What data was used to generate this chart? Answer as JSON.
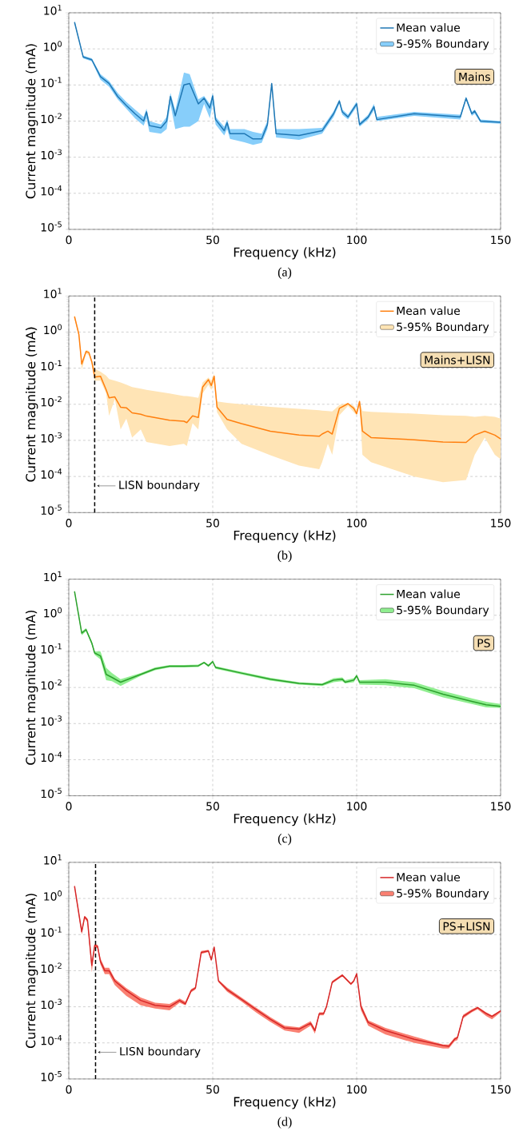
{
  "chart_data": [
    {
      "type": "line",
      "xlabel": "Frequency (kHz)",
      "ylabel": "Current magnitude (mA)",
      "annotations": [
        "Mains",
        "(a)"
      ],
      "xlim": [
        0,
        150
      ],
      "ylim": [
        1e-05,
        10
      ],
      "xticks": [
        0,
        50,
        100,
        150
      ],
      "yticks": [
        {
          "value": 1e-05,
          "label": "10$^{-5}$"
        },
        {
          "value": 0.0001,
          "label": "10$^{-4}$"
        },
        {
          "value": 0.001,
          "label": "10$^{-3}$"
        },
        {
          "value": 0.01,
          "label": "10$^{-2}$"
        },
        {
          "value": 0.1,
          "label": "10$^{-1}$"
        },
        {
          "value": 1,
          "label": "10$^{0}$"
        },
        {
          "value": 10,
          "label": "10$^{1}$"
        }
      ],
      "grid": true,
      "legend": "top right",
      "log": "y",
      "series": [
        {
          "name": "Mean value",
          "color": "#1f77b4",
          "x": [
            2,
            5,
            8,
            11,
            14,
            17,
            20,
            23,
            26,
            27,
            28,
            32,
            34,
            35.3,
            37,
            40,
            42,
            45,
            47,
            49,
            50,
            51,
            54,
            55,
            56,
            61,
            64,
            67,
            69,
            70.5,
            72,
            80,
            88,
            92,
            94,
            95,
            97,
            100,
            101,
            104,
            106,
            107,
            120,
            136,
            138,
            140,
            141,
            143,
            150
          ],
          "values": [
            5.5,
            0.6,
            0.5,
            0.17,
            0.11,
            0.048,
            0.027,
            0.016,
            0.01,
            0.018,
            0.0075,
            0.0065,
            0.01,
            0.048,
            0.014,
            0.1,
            0.11,
            0.03,
            0.043,
            0.023,
            0.05,
            0.011,
            0.0054,
            0.009,
            0.0045,
            0.0045,
            0.0032,
            0.0032,
            0.008,
            0.11,
            0.0045,
            0.004,
            0.0054,
            0.016,
            0.036,
            0.018,
            0.013,
            0.03,
            0.008,
            0.013,
            0.025,
            0.011,
            0.016,
            0.013,
            0.043,
            0.016,
            0.019,
            0.01,
            0.0093
          ],
          "lower": [
            5.0,
            0.55,
            0.45,
            0.14,
            0.09,
            0.04,
            0.022,
            0.012,
            0.0075,
            0.012,
            0.005,
            0.0045,
            0.006,
            0.03,
            0.006,
            0.007,
            0.007,
            0.01,
            0.03,
            0.012,
            0.03,
            0.008,
            0.004,
            0.006,
            0.0032,
            0.0026,
            0.0022,
            0.0025,
            0.006,
            0.09,
            0.0035,
            0.003,
            0.0045,
            0.013,
            0.03,
            0.015,
            0.011,
            0.025,
            0.007,
            0.011,
            0.02,
            0.01,
            0.014,
            0.011,
            0.038,
            0.014,
            0.016,
            0.009,
            0.0085
          ],
          "upper": [
            6.0,
            0.65,
            0.55,
            0.2,
            0.13,
            0.06,
            0.034,
            0.021,
            0.013,
            0.022,
            0.01,
            0.008,
            0.013,
            0.06,
            0.02,
            0.22,
            0.2,
            0.04,
            0.05,
            0.03,
            0.06,
            0.013,
            0.007,
            0.011,
            0.006,
            0.006,
            0.005,
            0.0045,
            0.01,
            0.12,
            0.006,
            0.006,
            0.0065,
            0.019,
            0.04,
            0.021,
            0.015,
            0.035,
            0.009,
            0.015,
            0.03,
            0.013,
            0.018,
            0.015,
            0.048,
            0.018,
            0.021,
            0.011,
            0.01
          ]
        },
        {
          "name": "5-95% Boundary",
          "type": "area",
          "color": "#87cefa"
        }
      ]
    },
    {
      "type": "line",
      "xlabel": "Frequency (kHz)",
      "ylabel": "Current magnitude (mA)",
      "annotations": [
        "Mains+LISN",
        "(b)"
      ],
      "xlim": [
        0,
        150
      ],
      "ylim": [
        1e-05,
        10
      ],
      "xticks": [
        0,
        50,
        100,
        150
      ],
      "yticks": [
        {
          "value": 1e-05,
          "label": "10$^{-5}$"
        },
        {
          "value": 0.0001,
          "label": "10$^{-4}$"
        },
        {
          "value": 0.001,
          "label": "10$^{-3}$"
        },
        {
          "value": 0.01,
          "label": "10$^{-2}$"
        },
        {
          "value": 0.1,
          "label": "10$^{-1}$"
        },
        {
          "value": 1,
          "label": "10$^{0}$"
        },
        {
          "value": 10,
          "label": "10$^{1}$"
        }
      ],
      "grid": true,
      "legend": "top right",
      "log": "y",
      "ref_lines": [
        {
          "axis": "x",
          "value": 9,
          "label": "LISN boundary",
          "color": "#000000",
          "line_style": "dashed"
        }
      ],
      "series": [
        {
          "name": "Mean value",
          "color": "#ff7f0e",
          "x": [
            2,
            3.5,
            4.5,
            6,
            7,
            8,
            9,
            11,
            13,
            14,
            16,
            18,
            20,
            22,
            25,
            27,
            35,
            40,
            41,
            43,
            45,
            46.5,
            48.5,
            49.5,
            50.5,
            51.5,
            55,
            60,
            70,
            80,
            87,
            88,
            90,
            91.5,
            94,
            97,
            99,
            100,
            101,
            102,
            105,
            120,
            130,
            138,
            141,
            144.5,
            148,
            150
          ],
          "values": [
            2.7,
            0.87,
            0.13,
            0.29,
            0.27,
            0.15,
            0.057,
            0.06,
            0.025,
            0.015,
            0.016,
            0.0083,
            0.008,
            0.0058,
            0.0053,
            0.0047,
            0.0036,
            0.0034,
            0.0031,
            0.0048,
            0.0043,
            0.03,
            0.048,
            0.033,
            0.06,
            0.0083,
            0.0038,
            0.0029,
            0.0018,
            0.0014,
            0.0013,
            0.0015,
            0.0018,
            0.0015,
            0.0077,
            0.0104,
            0.0077,
            0.0055,
            0.012,
            0.0018,
            0.0012,
            0.00104,
            0.0009,
            0.00088,
            0.0014,
            0.0018,
            0.0014,
            0.0011
          ],
          "lower": [
            2.3,
            0.75,
            0.09,
            0.25,
            0.23,
            0.13,
            0.045,
            0.045,
            0.02,
            0.0048,
            0.014,
            0.002,
            0.004,
            0.0012,
            0.002,
            0.0009,
            0.0007,
            0.0008,
            0.0007,
            0.003,
            0.002,
            0.02,
            0.035,
            0.025,
            0.04,
            0.006,
            0.002,
            0.0008,
            0.00039,
            0.0002,
            0.00016,
            0.00025,
            0.0008,
            0.0004,
            0.005,
            0.009,
            0.006,
            0.005,
            0.01,
            0.0004,
            0.00025,
            0.0001,
            7e-05,
            8e-05,
            0.0004,
            0.0012,
            0.0004,
            0.0003
          ],
          "upper": [
            3.0,
            1.0,
            0.15,
            0.32,
            0.3,
            0.17,
            0.096,
            0.08,
            0.062,
            0.05,
            0.045,
            0.04,
            0.035,
            0.03,
            0.027,
            0.025,
            0.02,
            0.017,
            0.017,
            0.016,
            0.015,
            0.04,
            0.055,
            0.045,
            0.07,
            0.012,
            0.011,
            0.01,
            0.0085,
            0.0075,
            0.0068,
            0.0067,
            0.0065,
            0.0063,
            0.0095,
            0.011,
            0.009,
            0.007,
            0.013,
            0.0065,
            0.0062,
            0.0055,
            0.005,
            0.0048,
            0.0045,
            0.0048,
            0.0045,
            0.004
          ]
        },
        {
          "name": "5-95% Boundary",
          "type": "area",
          "color": "#ffe4b5"
        }
      ]
    },
    {
      "type": "line",
      "xlabel": "Frequency (kHz)",
      "ylabel": "Current magnitude (mA)",
      "annotations": [
        "PS",
        "(c)"
      ],
      "xlim": [
        0,
        150
      ],
      "ylim": [
        1e-05,
        10
      ],
      "xticks": [
        0,
        50,
        100,
        150
      ],
      "yticks": [
        {
          "value": 1e-05,
          "label": "10$^{-5}$"
        },
        {
          "value": 0.0001,
          "label": "10$^{-4}$"
        },
        {
          "value": 0.001,
          "label": "10$^{-3}$"
        },
        {
          "value": 0.01,
          "label": "10$^{-2}$"
        },
        {
          "value": 0.1,
          "label": "10$^{-1}$"
        },
        {
          "value": 1,
          "label": "10$^{0}$"
        },
        {
          "value": 10,
          "label": "10$^{1}$"
        }
      ],
      "grid": true,
      "legend": "top right",
      "log": "y",
      "series": [
        {
          "name": "Mean value",
          "color": "#2ca02c",
          "x": [
            2,
            4.5,
            6,
            8,
            9,
            11,
            13,
            15,
            18,
            25,
            30,
            35,
            40,
            45,
            47,
            48.5,
            50,
            51,
            60,
            70,
            80,
            88,
            92,
            95,
            96,
            99,
            100,
            101,
            110,
            120,
            130,
            140,
            145,
            150
          ],
          "values": [
            4.6,
            0.32,
            0.4,
            0.17,
            0.09,
            0.075,
            0.023,
            0.019,
            0.014,
            0.023,
            0.033,
            0.039,
            0.039,
            0.04,
            0.049,
            0.04,
            0.052,
            0.036,
            0.025,
            0.017,
            0.013,
            0.012,
            0.016,
            0.017,
            0.014,
            0.016,
            0.021,
            0.014,
            0.014,
            0.0115,
            0.0065,
            0.0041,
            0.0033,
            0.003
          ],
          "lower": [
            4.2,
            0.28,
            0.36,
            0.15,
            0.08,
            0.06,
            0.016,
            0.015,
            0.011,
            0.021,
            0.03,
            0.036,
            0.036,
            0.037,
            0.046,
            0.037,
            0.048,
            0.033,
            0.023,
            0.0155,
            0.012,
            0.011,
            0.014,
            0.015,
            0.013,
            0.014,
            0.019,
            0.012,
            0.0115,
            0.0095,
            0.0053,
            0.0035,
            0.0028,
            0.0027
          ],
          "upper": [
            5.0,
            0.35,
            0.44,
            0.19,
            0.1,
            0.1,
            0.035,
            0.025,
            0.017,
            0.025,
            0.036,
            0.042,
            0.042,
            0.043,
            0.052,
            0.043,
            0.056,
            0.039,
            0.027,
            0.0185,
            0.014,
            0.013,
            0.018,
            0.019,
            0.016,
            0.018,
            0.023,
            0.016,
            0.017,
            0.014,
            0.008,
            0.005,
            0.004,
            0.0035
          ]
        },
        {
          "name": "5-95% Boundary",
          "type": "area",
          "color": "#90ee90"
        }
      ]
    },
    {
      "type": "line",
      "xlabel": "Frequency (kHz)",
      "ylabel": "Current magnitude (mA)",
      "annotations": [
        "PS+LISN",
        "(d)"
      ],
      "xlim": [
        0,
        150
      ],
      "ylim": [
        1e-05,
        10
      ],
      "xticks": [
        0,
        50,
        100,
        150
      ],
      "yticks": [
        {
          "value": 1e-05,
          "label": "10$^{-5}$"
        },
        {
          "value": 0.0001,
          "label": "10$^{-4}$"
        },
        {
          "value": 0.001,
          "label": "10$^{-3}$"
        },
        {
          "value": 0.01,
          "label": "10$^{-2}$"
        },
        {
          "value": 0.1,
          "label": "10$^{-1}$"
        },
        {
          "value": 1,
          "label": "10$^{0}$"
        },
        {
          "value": 10,
          "label": "10$^{1}$"
        }
      ],
      "grid": true,
      "legend": "top right",
      "log": "y",
      "ref_lines": [
        {
          "axis": "x",
          "value": 9.3,
          "label": "LISN boundary",
          "color": "#000000",
          "line_style": "dashed"
        }
      ],
      "series": [
        {
          "name": "Mean value",
          "color": "#d62728",
          "x": [
            2,
            4,
            4.5,
            5.5,
            6.5,
            8,
            9,
            10,
            11,
            12.5,
            14,
            16,
            20,
            25,
            30,
            35,
            38.5,
            40.5,
            42.5,
            44,
            46,
            48.5,
            49.5,
            50.5,
            52,
            55,
            60,
            65,
            70,
            75,
            80,
            84,
            85.5,
            87,
            88.5,
            89.5,
            91.5,
            95,
            98,
            99,
            100,
            101.5,
            104,
            110,
            120,
            130,
            132,
            134,
            135,
            137,
            140,
            142,
            145,
            147,
            150
          ],
          "values": [
            2.2,
            0.21,
            0.12,
            0.31,
            0.25,
            0.014,
            0.05,
            0.047,
            0.018,
            0.01,
            0.01,
            0.0052,
            0.0028,
            0.0015,
            0.0011,
            0.001,
            0.0015,
            0.0012,
            0.0028,
            0.0033,
            0.032,
            0.035,
            0.02,
            0.045,
            0.0052,
            0.003,
            0.0016,
            0.00085,
            0.00045,
            0.00026,
            0.00024,
            0.00035,
            0.00022,
            0.00064,
            0.00064,
            0.001,
            0.0048,
            0.0075,
            0.0043,
            0.0052,
            0.0082,
            0.001,
            0.00037,
            0.00022,
            0.000126,
            8.5e-05,
            8e-05,
            0.000126,
            0.00014,
            0.00054,
            0.00077,
            0.00095,
            0.00065,
            0.00054,
            0.00077
          ],
          "lower": [
            2.0,
            0.18,
            0.1,
            0.28,
            0.22,
            0.009,
            0.045,
            0.042,
            0.015,
            0.008,
            0.008,
            0.004,
            0.002,
            0.0011,
            0.0009,
            0.0008,
            0.0013,
            0.0011,
            0.0025,
            0.003,
            0.029,
            0.033,
            0.018,
            0.042,
            0.0048,
            0.0026,
            0.0014,
            0.0007,
            0.00038,
            0.00022,
            0.00019,
            0.0003,
            0.00018,
            0.00058,
            0.00058,
            0.0009,
            0.0044,
            0.007,
            0.004,
            0.0048,
            0.0078,
            0.0008,
            0.0003,
            0.00017,
            0.0001,
            7e-05,
            7e-05,
            0.00011,
            0.00012,
            0.00048,
            0.0007,
            0.00085,
            0.00055,
            0.00045,
            0.0007
          ],
          "upper": [
            2.4,
            0.24,
            0.14,
            0.33,
            0.28,
            0.016,
            0.055,
            0.052,
            0.022,
            0.012,
            0.012,
            0.006,
            0.0033,
            0.0018,
            0.0013,
            0.0012,
            0.0017,
            0.0014,
            0.0031,
            0.0036,
            0.035,
            0.038,
            0.022,
            0.048,
            0.0056,
            0.0034,
            0.0018,
            0.00095,
            0.00052,
            0.0003,
            0.00027,
            0.0004,
            0.00025,
            0.0007,
            0.0007,
            0.0011,
            0.0052,
            0.008,
            0.0046,
            0.0056,
            0.0086,
            0.0012,
            0.00042,
            0.00026,
            0.00015,
            9e-05,
            9e-05,
            0.00014,
            0.00015,
            0.0006,
            0.00085,
            0.001,
            0.0007,
            0.00058,
            0.0008
          ]
        },
        {
          "name": "5-95% Boundary",
          "type": "area",
          "color": "#fa8072"
        }
      ]
    }
  ]
}
